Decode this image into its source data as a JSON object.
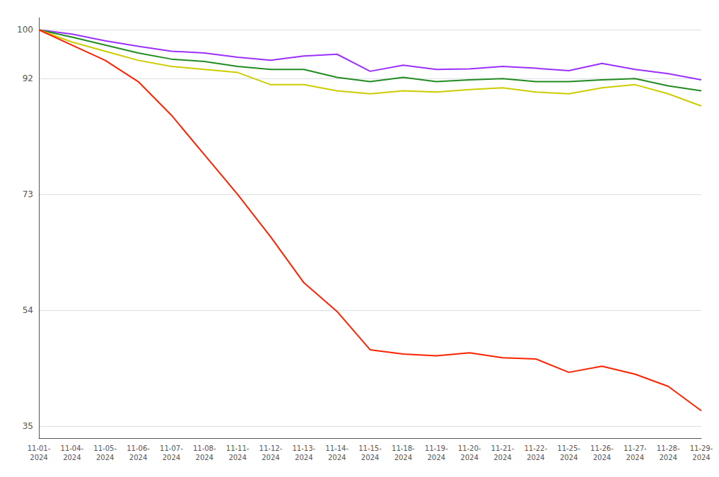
{
  "chart_data": {
    "type": "line",
    "categories": [
      "11-01-\n2024",
      "11-04-\n2024",
      "11-05-\n2024",
      "11-06-\n2024",
      "11-07-\n2024",
      "11-08-\n2024",
      "11-11-\n2024",
      "11-12-\n2024",
      "11-13-\n2024",
      "11-14-\n2024",
      "11-15-\n2024",
      "11-18-\n2024",
      "11-19-\n2024",
      "11-20-\n2024",
      "11-21-\n2024",
      "11-22-\n2024",
      "11-25-\n2024",
      "11-26-\n2024",
      "11-27-\n2024",
      "11-28-\n2024",
      "11-29-\n2024"
    ],
    "series": [
      {
        "color": "#9B30FF",
        "values": [
          100,
          99.3,
          98.2,
          97.3,
          96.5,
          96.2,
          95.5,
          95.0,
          95.7,
          96.0,
          93.2,
          94.2,
          93.5,
          93.6,
          94.0,
          93.7,
          93.3,
          94.5,
          93.5,
          92.8,
          91.8
        ]
      },
      {
        "color": "#228B22",
        "values": [
          100,
          98.8,
          97.5,
          96.2,
          95.2,
          94.8,
          94.0,
          93.5,
          93.5,
          92.2,
          91.5,
          92.2,
          91.5,
          91.8,
          92.0,
          91.5,
          91.5,
          91.8,
          92.0,
          90.8,
          90.0
        ]
      },
      {
        "color": "#CCCC00",
        "values": [
          100,
          98.0,
          96.5,
          95.0,
          94.0,
          93.5,
          93.0,
          91.0,
          91.0,
          90.0,
          89.5,
          90.0,
          89.8,
          90.2,
          90.5,
          89.8,
          89.5,
          90.5,
          91.0,
          89.5,
          87.5
        ]
      },
      {
        "color": "#FF2200",
        "values": [
          100,
          97.5,
          95.0,
          91.5,
          86.0,
          79.5,
          73.0,
          66.0,
          58.5,
          53.8,
          47.5,
          46.8,
          46.5,
          47.0,
          46.2,
          46.0,
          43.8,
          44.8,
          43.5,
          41.5,
          37.5
        ]
      }
    ],
    "ylim": [
      33,
      102
    ],
    "yticks": [
      35,
      54,
      73,
      92,
      100
    ],
    "grid": true
  }
}
